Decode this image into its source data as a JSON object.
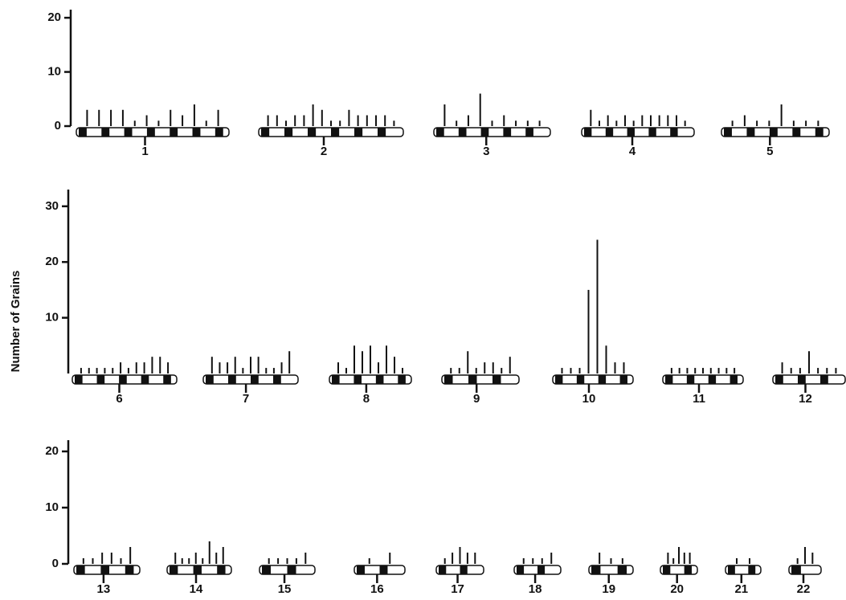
{
  "chart_data": [
    {
      "type": "bar",
      "ylim": [
        0,
        21.5
      ],
      "yticks": [
        0,
        10,
        20
      ],
      "categories": [
        "1",
        "2",
        "3",
        "4",
        "5"
      ],
      "values": [
        [
          3,
          3,
          3,
          3,
          1,
          2,
          1,
          3,
          2,
          4,
          1,
          3
        ],
        [
          2,
          2,
          1,
          2,
          2,
          4,
          3,
          1,
          1,
          3,
          2,
          2,
          2,
          2,
          1
        ],
        [
          4,
          1,
          2,
          6,
          1,
          2,
          1,
          1,
          1
        ],
        [
          3,
          1,
          2,
          1,
          2,
          1,
          2,
          2,
          2,
          2,
          2,
          1
        ],
        [
          1,
          2,
          1,
          1,
          4,
          1,
          1,
          1
        ]
      ]
    },
    {
      "type": "bar",
      "ylabel": "Number of Grains",
      "ylim": [
        0,
        33
      ],
      "yticks": [
        10,
        20,
        30
      ],
      "categories": [
        "6",
        "7",
        "8",
        "9",
        "10",
        "11",
        "12"
      ],
      "values": [
        [
          1,
          1,
          1,
          1,
          1,
          2,
          1,
          2,
          2,
          3,
          3,
          2
        ],
        [
          3,
          2,
          2,
          3,
          1,
          3,
          3,
          1,
          1,
          2,
          4
        ],
        [
          2,
          1,
          5,
          4,
          5,
          2,
          5,
          3,
          1
        ],
        [
          1,
          1,
          4,
          1,
          2,
          2,
          1,
          3
        ],
        [
          1,
          1,
          1,
          15,
          24,
          5,
          2,
          2
        ],
        [
          1,
          1,
          1,
          1,
          1,
          1,
          1,
          1,
          1
        ],
        [
          2,
          1,
          1,
          4,
          1,
          1,
          1
        ]
      ]
    },
    {
      "type": "bar",
      "ylim": [
        0,
        22
      ],
      "yticks": [
        0,
        10,
        20
      ],
      "categories": [
        "13",
        "14",
        "15",
        "16",
        "17",
        "18",
        "19",
        "20",
        "21",
        "22"
      ],
      "values": [
        [
          1,
          1,
          2,
          2,
          1,
          3
        ],
        [
          2,
          1,
          1,
          2,
          1,
          4,
          2,
          3
        ],
        [
          1,
          1,
          1,
          1,
          2
        ],
        [
          1,
          2
        ],
        [
          1,
          2,
          3,
          2,
          2
        ],
        [
          1,
          1,
          1,
          2
        ],
        [
          2,
          1,
          1
        ],
        [
          2,
          1,
          3,
          2,
          2
        ],
        [
          1,
          1
        ],
        [
          1,
          3,
          2
        ]
      ]
    }
  ]
}
